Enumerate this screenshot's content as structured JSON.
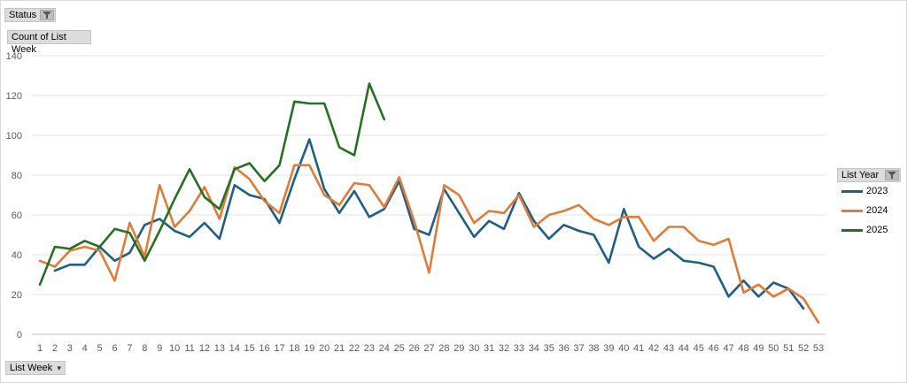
{
  "filter_fields": {
    "status_label": "Status",
    "value_label": "Count of List Week",
    "axis_field_label": "List Week",
    "legend_field_label": "List Year"
  },
  "chart_data": {
    "type": "line",
    "title": "",
    "xlabel": "List Week",
    "ylabel": "",
    "x": [
      1,
      2,
      3,
      4,
      5,
      6,
      7,
      8,
      9,
      10,
      11,
      12,
      13,
      14,
      15,
      16,
      17,
      18,
      19,
      20,
      21,
      22,
      23,
      24,
      25,
      26,
      27,
      28,
      29,
      30,
      31,
      32,
      33,
      34,
      35,
      36,
      37,
      38,
      39,
      40,
      41,
      42,
      43,
      44,
      45,
      46,
      47,
      48,
      49,
      50,
      51,
      52,
      53
    ],
    "ylim": [
      0,
      140
    ],
    "yticks": [
      0,
      20,
      40,
      60,
      80,
      100,
      120,
      140
    ],
    "grid": true,
    "legend_position": "right",
    "series": [
      {
        "name": "2023",
        "color": "#1f5e85",
        "values": [
          null,
          32,
          35,
          35,
          44,
          37,
          41,
          55,
          58,
          52,
          49,
          56,
          48,
          75,
          70,
          68,
          56,
          78,
          98,
          73,
          61,
          72,
          59,
          63,
          77,
          53,
          50,
          73,
          61,
          49,
          57,
          53,
          71,
          57,
          48,
          55,
          52,
          50,
          36,
          63,
          44,
          38,
          43,
          37,
          36,
          34,
          19,
          27,
          19,
          26,
          23,
          13,
          null
        ]
      },
      {
        "name": "2024",
        "color": "#e07b39",
        "values": [
          37,
          34,
          42,
          44,
          42,
          27,
          56,
          39,
          75,
          54,
          62,
          74,
          58,
          84,
          78,
          67,
          61,
          85,
          85,
          70,
          65,
          76,
          75,
          64,
          79,
          57,
          31,
          75,
          70,
          56,
          62,
          61,
          70,
          54,
          60,
          62,
          65,
          58,
          55,
          59,
          59,
          47,
          54,
          54,
          47,
          45,
          48,
          21,
          25,
          19,
          23,
          18,
          6
        ]
      },
      {
        "name": "2025",
        "color": "#267025",
        "values": [
          25,
          44,
          43,
          47,
          44,
          53,
          51,
          37,
          52,
          68,
          83,
          69,
          63,
          83,
          86,
          77,
          85,
          117,
          116,
          116,
          94,
          90,
          126,
          108,
          null,
          null,
          null,
          null,
          null,
          null,
          null,
          null,
          null,
          null,
          null,
          null,
          null,
          null,
          null,
          null,
          null,
          null,
          null,
          null,
          null,
          null,
          null,
          null,
          null,
          null,
          null,
          null,
          null
        ]
      }
    ]
  }
}
